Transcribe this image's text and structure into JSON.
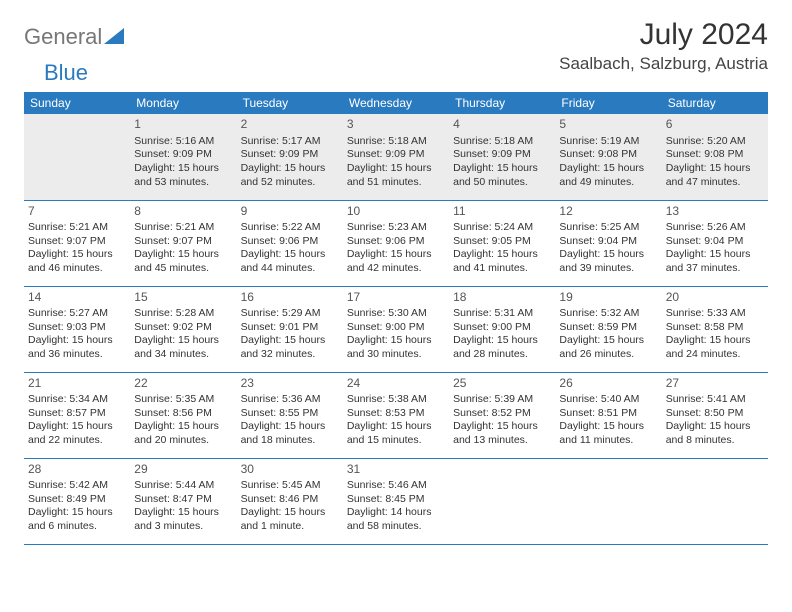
{
  "logo": {
    "text_general": "General",
    "text_blue": "Blue"
  },
  "header": {
    "title": "July 2024",
    "location": "Saalbach, Salzburg, Austria"
  },
  "weekdays": [
    "Sunday",
    "Monday",
    "Tuesday",
    "Wednesday",
    "Thursday",
    "Friday",
    "Saturday"
  ],
  "colors": {
    "header_bg": "#2a7ac0",
    "row_sep": "#2a7ac0",
    "first_row_bg": "#ececec"
  },
  "weeks": [
    [
      {
        "empty": true
      },
      {
        "day": "1",
        "sunrise": "Sunrise: 5:16 AM",
        "sunset": "Sunset: 9:09 PM",
        "daylight1": "Daylight: 15 hours",
        "daylight2": "and 53 minutes."
      },
      {
        "day": "2",
        "sunrise": "Sunrise: 5:17 AM",
        "sunset": "Sunset: 9:09 PM",
        "daylight1": "Daylight: 15 hours",
        "daylight2": "and 52 minutes."
      },
      {
        "day": "3",
        "sunrise": "Sunrise: 5:18 AM",
        "sunset": "Sunset: 9:09 PM",
        "daylight1": "Daylight: 15 hours",
        "daylight2": "and 51 minutes."
      },
      {
        "day": "4",
        "sunrise": "Sunrise: 5:18 AM",
        "sunset": "Sunset: 9:09 PM",
        "daylight1": "Daylight: 15 hours",
        "daylight2": "and 50 minutes."
      },
      {
        "day": "5",
        "sunrise": "Sunrise: 5:19 AM",
        "sunset": "Sunset: 9:08 PM",
        "daylight1": "Daylight: 15 hours",
        "daylight2": "and 49 minutes."
      },
      {
        "day": "6",
        "sunrise": "Sunrise: 5:20 AM",
        "sunset": "Sunset: 9:08 PM",
        "daylight1": "Daylight: 15 hours",
        "daylight2": "and 47 minutes."
      }
    ],
    [
      {
        "day": "7",
        "sunrise": "Sunrise: 5:21 AM",
        "sunset": "Sunset: 9:07 PM",
        "daylight1": "Daylight: 15 hours",
        "daylight2": "and 46 minutes."
      },
      {
        "day": "8",
        "sunrise": "Sunrise: 5:21 AM",
        "sunset": "Sunset: 9:07 PM",
        "daylight1": "Daylight: 15 hours",
        "daylight2": "and 45 minutes."
      },
      {
        "day": "9",
        "sunrise": "Sunrise: 5:22 AM",
        "sunset": "Sunset: 9:06 PM",
        "daylight1": "Daylight: 15 hours",
        "daylight2": "and 44 minutes."
      },
      {
        "day": "10",
        "sunrise": "Sunrise: 5:23 AM",
        "sunset": "Sunset: 9:06 PM",
        "daylight1": "Daylight: 15 hours",
        "daylight2": "and 42 minutes."
      },
      {
        "day": "11",
        "sunrise": "Sunrise: 5:24 AM",
        "sunset": "Sunset: 9:05 PM",
        "daylight1": "Daylight: 15 hours",
        "daylight2": "and 41 minutes."
      },
      {
        "day": "12",
        "sunrise": "Sunrise: 5:25 AM",
        "sunset": "Sunset: 9:04 PM",
        "daylight1": "Daylight: 15 hours",
        "daylight2": "and 39 minutes."
      },
      {
        "day": "13",
        "sunrise": "Sunrise: 5:26 AM",
        "sunset": "Sunset: 9:04 PM",
        "daylight1": "Daylight: 15 hours",
        "daylight2": "and 37 minutes."
      }
    ],
    [
      {
        "day": "14",
        "sunrise": "Sunrise: 5:27 AM",
        "sunset": "Sunset: 9:03 PM",
        "daylight1": "Daylight: 15 hours",
        "daylight2": "and 36 minutes."
      },
      {
        "day": "15",
        "sunrise": "Sunrise: 5:28 AM",
        "sunset": "Sunset: 9:02 PM",
        "daylight1": "Daylight: 15 hours",
        "daylight2": "and 34 minutes."
      },
      {
        "day": "16",
        "sunrise": "Sunrise: 5:29 AM",
        "sunset": "Sunset: 9:01 PM",
        "daylight1": "Daylight: 15 hours",
        "daylight2": "and 32 minutes."
      },
      {
        "day": "17",
        "sunrise": "Sunrise: 5:30 AM",
        "sunset": "Sunset: 9:00 PM",
        "daylight1": "Daylight: 15 hours",
        "daylight2": "and 30 minutes."
      },
      {
        "day": "18",
        "sunrise": "Sunrise: 5:31 AM",
        "sunset": "Sunset: 9:00 PM",
        "daylight1": "Daylight: 15 hours",
        "daylight2": "and 28 minutes."
      },
      {
        "day": "19",
        "sunrise": "Sunrise: 5:32 AM",
        "sunset": "Sunset: 8:59 PM",
        "daylight1": "Daylight: 15 hours",
        "daylight2": "and 26 minutes."
      },
      {
        "day": "20",
        "sunrise": "Sunrise: 5:33 AM",
        "sunset": "Sunset: 8:58 PM",
        "daylight1": "Daylight: 15 hours",
        "daylight2": "and 24 minutes."
      }
    ],
    [
      {
        "day": "21",
        "sunrise": "Sunrise: 5:34 AM",
        "sunset": "Sunset: 8:57 PM",
        "daylight1": "Daylight: 15 hours",
        "daylight2": "and 22 minutes."
      },
      {
        "day": "22",
        "sunrise": "Sunrise: 5:35 AM",
        "sunset": "Sunset: 8:56 PM",
        "daylight1": "Daylight: 15 hours",
        "daylight2": "and 20 minutes."
      },
      {
        "day": "23",
        "sunrise": "Sunrise: 5:36 AM",
        "sunset": "Sunset: 8:55 PM",
        "daylight1": "Daylight: 15 hours",
        "daylight2": "and 18 minutes."
      },
      {
        "day": "24",
        "sunrise": "Sunrise: 5:38 AM",
        "sunset": "Sunset: 8:53 PM",
        "daylight1": "Daylight: 15 hours",
        "daylight2": "and 15 minutes."
      },
      {
        "day": "25",
        "sunrise": "Sunrise: 5:39 AM",
        "sunset": "Sunset: 8:52 PM",
        "daylight1": "Daylight: 15 hours",
        "daylight2": "and 13 minutes."
      },
      {
        "day": "26",
        "sunrise": "Sunrise: 5:40 AM",
        "sunset": "Sunset: 8:51 PM",
        "daylight1": "Daylight: 15 hours",
        "daylight2": "and 11 minutes."
      },
      {
        "day": "27",
        "sunrise": "Sunrise: 5:41 AM",
        "sunset": "Sunset: 8:50 PM",
        "daylight1": "Daylight: 15 hours",
        "daylight2": "and 8 minutes."
      }
    ],
    [
      {
        "day": "28",
        "sunrise": "Sunrise: 5:42 AM",
        "sunset": "Sunset: 8:49 PM",
        "daylight1": "Daylight: 15 hours",
        "daylight2": "and 6 minutes."
      },
      {
        "day": "29",
        "sunrise": "Sunrise: 5:44 AM",
        "sunset": "Sunset: 8:47 PM",
        "daylight1": "Daylight: 15 hours",
        "daylight2": "and 3 minutes."
      },
      {
        "day": "30",
        "sunrise": "Sunrise: 5:45 AM",
        "sunset": "Sunset: 8:46 PM",
        "daylight1": "Daylight: 15 hours",
        "daylight2": "and 1 minute."
      },
      {
        "day": "31",
        "sunrise": "Sunrise: 5:46 AM",
        "sunset": "Sunset: 8:45 PM",
        "daylight1": "Daylight: 14 hours",
        "daylight2": "and 58 minutes."
      },
      {
        "empty": true
      },
      {
        "empty": true
      },
      {
        "empty": true
      }
    ]
  ]
}
